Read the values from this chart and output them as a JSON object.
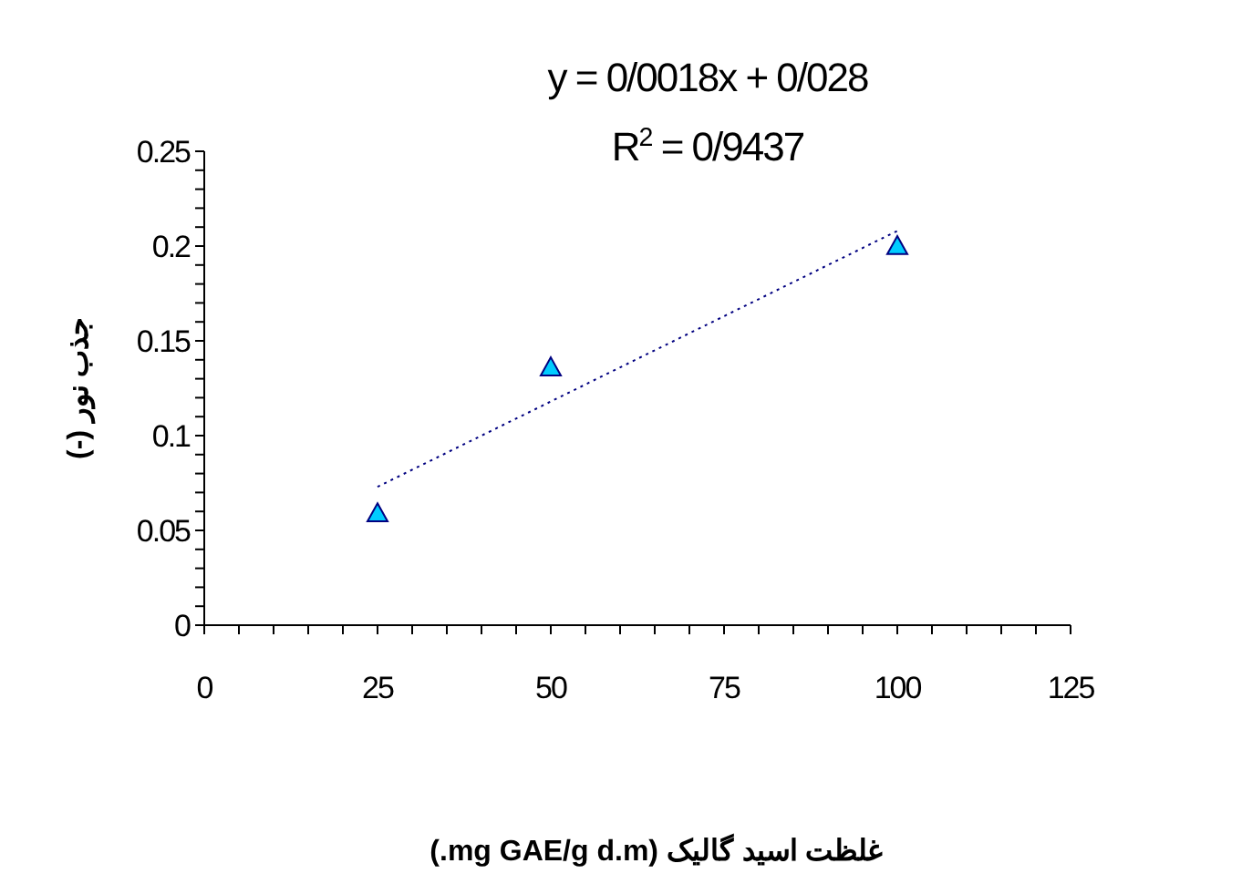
{
  "chart_data": {
    "type": "scatter",
    "xlabel": "غلظت اسید گالیک (mg GAE/g d.m.)",
    "ylabel": "جذب نور (-)",
    "annotations": [
      "y = 0/0018x + 0/028",
      "R$^{2}$ = 0/9437"
    ],
    "series": [
      {
        "x": [
          25,
          50,
          100
        ],
        "values": [
          0.059,
          0.136,
          0.2
        ],
        "color": "#00ccff",
        "marker": "triangle"
      },
      {
        "type": "line",
        "x": [
          25,
          100
        ],
        "values": [
          0.073,
          0.208
        ],
        "color": "#000080",
        "line_style": "dotted",
        "marker": "none"
      }
    ],
    "xlim": [
      0,
      125
    ],
    "xticks": [
      0,
      {
        "value": 5,
        "label": null
      },
      {
        "value": 10,
        "label": null
      },
      {
        "value": 15,
        "label": null
      },
      {
        "value": 20,
        "label": null
      },
      25,
      {
        "value": 30,
        "label": null
      },
      {
        "value": 35,
        "label": null
      },
      {
        "value": 40,
        "label": null
      },
      {
        "value": 45,
        "label": null
      },
      50,
      {
        "value": 55,
        "label": null
      },
      {
        "value": 60,
        "label": null
      },
      {
        "value": 65,
        "label": null
      },
      {
        "value": 70,
        "label": null
      },
      75,
      {
        "value": 80,
        "label": null
      },
      {
        "value": 85,
        "label": null
      },
      {
        "value": 90,
        "label": null
      },
      {
        "value": 95,
        "label": null
      },
      100,
      {
        "value": 105,
        "label": null
      },
      {
        "value": 110,
        "label": null
      },
      {
        "value": 115,
        "label": null
      },
      {
        "value": 120,
        "label": null
      },
      125
    ],
    "ylim": [
      0,
      0.25
    ],
    "yticks": [
      0,
      {
        "value": 0.01,
        "label": null
      },
      {
        "value": 0.02,
        "label": null
      },
      {
        "value": 0.03,
        "label": null
      },
      {
        "value": 0.04,
        "label": null
      },
      0.05,
      {
        "value": 0.06,
        "label": null
      },
      {
        "value": 0.07,
        "label": null
      },
      {
        "value": 0.08,
        "label": null
      },
      {
        "value": 0.09,
        "label": null
      },
      0.1,
      {
        "value": 0.11,
        "label": null
      },
      {
        "value": 0.12,
        "label": null
      },
      {
        "value": 0.13,
        "label": null
      },
      {
        "value": 0.14,
        "label": null
      },
      0.15,
      {
        "value": 0.16,
        "label": null
      },
      {
        "value": 0.17,
        "label": null
      },
      {
        "value": 0.18,
        "label": null
      },
      {
        "value": 0.19,
        "label": null
      },
      0.2,
      {
        "value": 0.21,
        "label": null
      },
      {
        "value": 0.22,
        "label": null
      },
      {
        "value": 0.23,
        "label": null
      },
      {
        "value": 0.24,
        "label": null
      },
      0.25
    ],
    "grid": false
  }
}
